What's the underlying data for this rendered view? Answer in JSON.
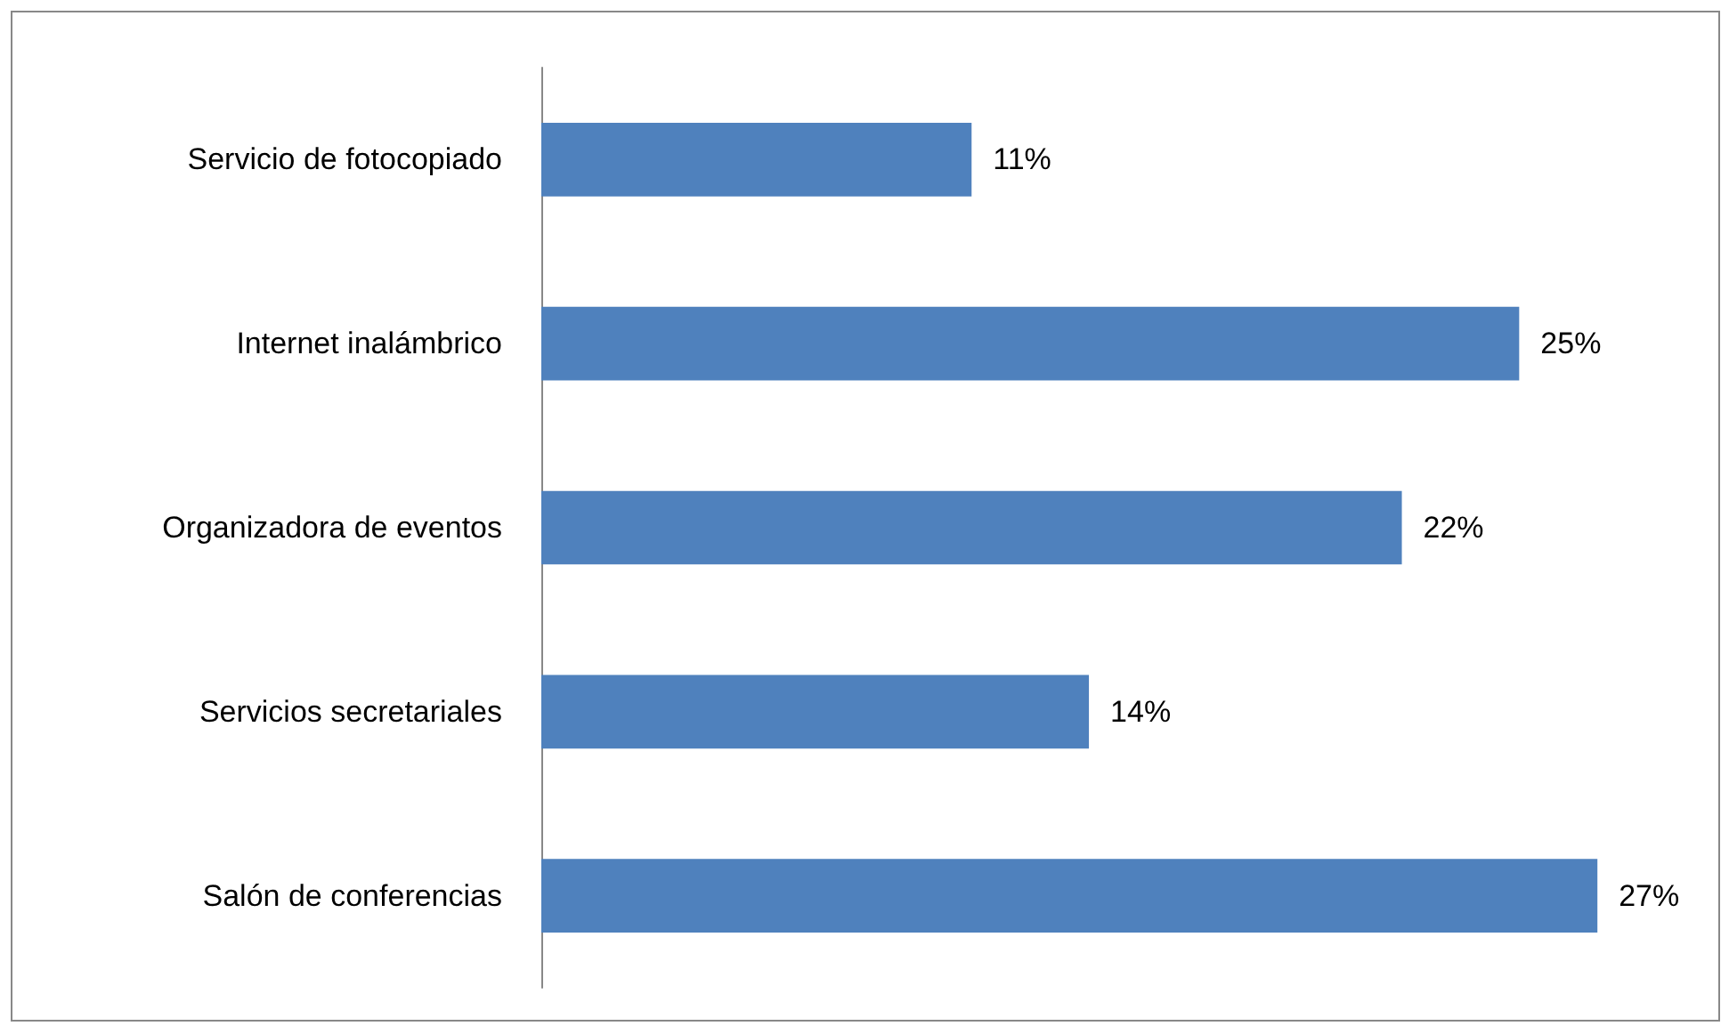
{
  "chart_data": {
    "type": "bar",
    "orientation": "horizontal",
    "categories": [
      "Servicio de fotocopiado",
      "Internet inalámbrico",
      "Organizadora de eventos",
      "Servicios secretariales",
      "Salón de conferencias"
    ],
    "values": [
      11,
      25,
      22,
      14,
      27
    ],
    "value_labels": [
      "11%",
      "25%",
      "22%",
      "14%",
      "27%"
    ],
    "color": "#4f81bd"
  }
}
